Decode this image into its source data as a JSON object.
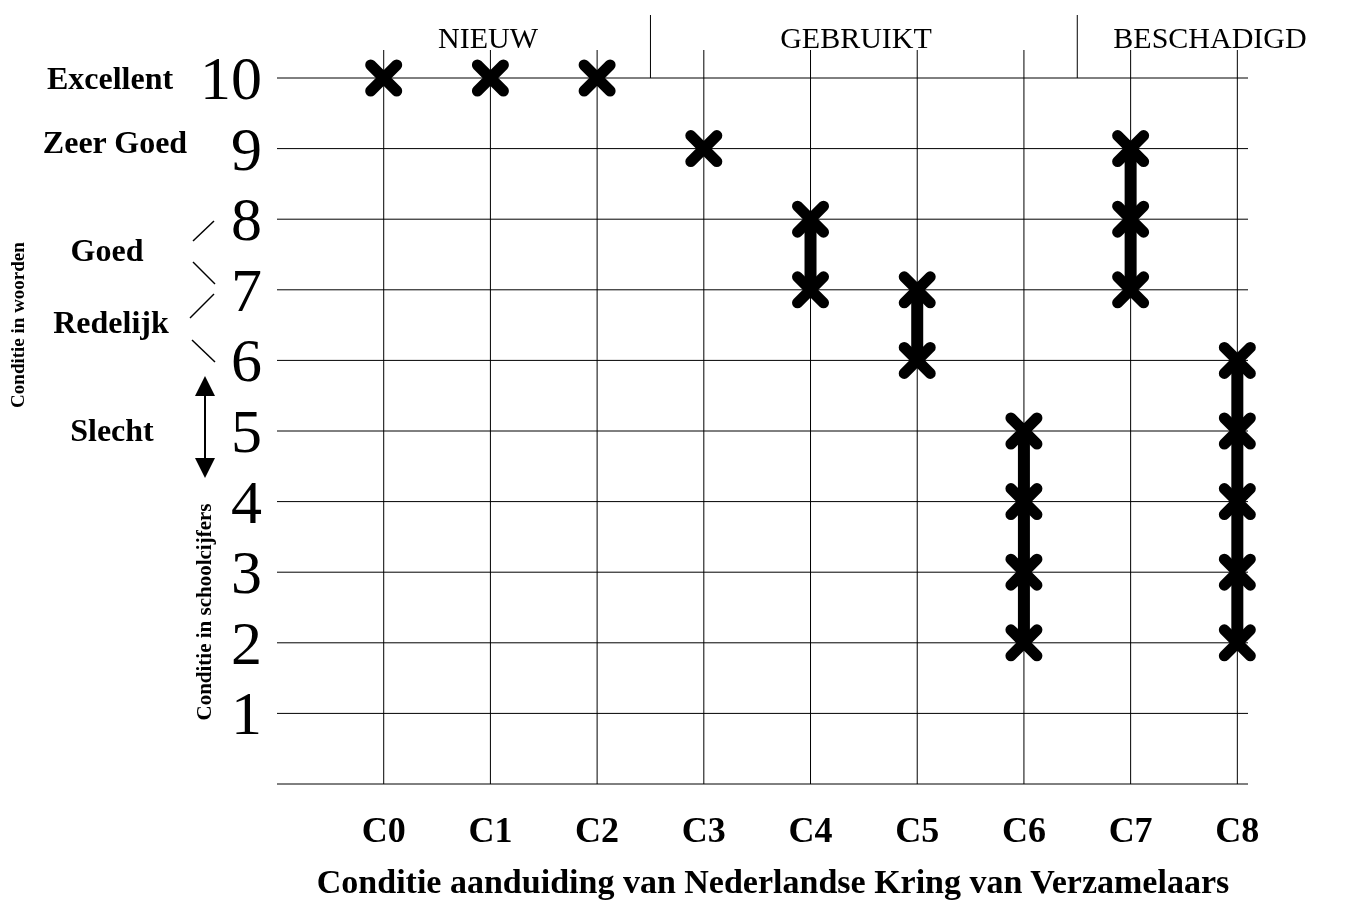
{
  "chart_data": {
    "type": "line",
    "xlabel": "Conditie aanduiding van Nederlandse Kring van Verzamelaars",
    "ylabel": "Conditie in schoolcijfers",
    "categories": [
      "C0",
      "C1",
      "C2",
      "C3",
      "C4",
      "C5",
      "C6",
      "C7",
      "C8"
    ],
    "ylim": [
      0,
      10
    ],
    "yticks": [
      1,
      2,
      3,
      4,
      5,
      6,
      7,
      8,
      9,
      10
    ],
    "grid": true,
    "marker": "cross",
    "line_style": "solid",
    "series": [
      {
        "color": "#000000",
        "x": [
          "C0"
        ],
        "values": [
          10
        ]
      },
      {
        "color": "#000000",
        "x": [
          "C1"
        ],
        "values": [
          10
        ]
      },
      {
        "color": "#000000",
        "x": [
          "C2"
        ],
        "values": [
          10
        ]
      },
      {
        "color": "#000000",
        "x": [
          "C3"
        ],
        "values": [
          9
        ]
      },
      {
        "color": "#000000",
        "x": [
          "C4",
          "C4"
        ],
        "values": [
          7,
          8
        ]
      },
      {
        "color": "#000000",
        "x": [
          "C5",
          "C5"
        ],
        "values": [
          6,
          7
        ]
      },
      {
        "color": "#000000",
        "x": [
          "C6",
          "C6",
          "C6",
          "C6"
        ],
        "values": [
          2,
          3,
          4,
          5
        ]
      },
      {
        "color": "#000000",
        "x": [
          "C7",
          "C7",
          "C7"
        ],
        "values": [
          7,
          8,
          9
        ]
      },
      {
        "color": "#000000",
        "x": [
          "C8",
          "C8",
          "C8",
          "C8",
          "C8"
        ],
        "values": [
          2,
          3,
          4,
          5,
          6
        ]
      }
    ],
    "annotations": [
      "NIEUW",
      "GEBRUIKT",
      "BESCHADIGD",
      "Conditie in woorden",
      "Excellent",
      "Zeer Goed",
      "Goed",
      "Redelijk",
      "Slecht"
    ]
  }
}
